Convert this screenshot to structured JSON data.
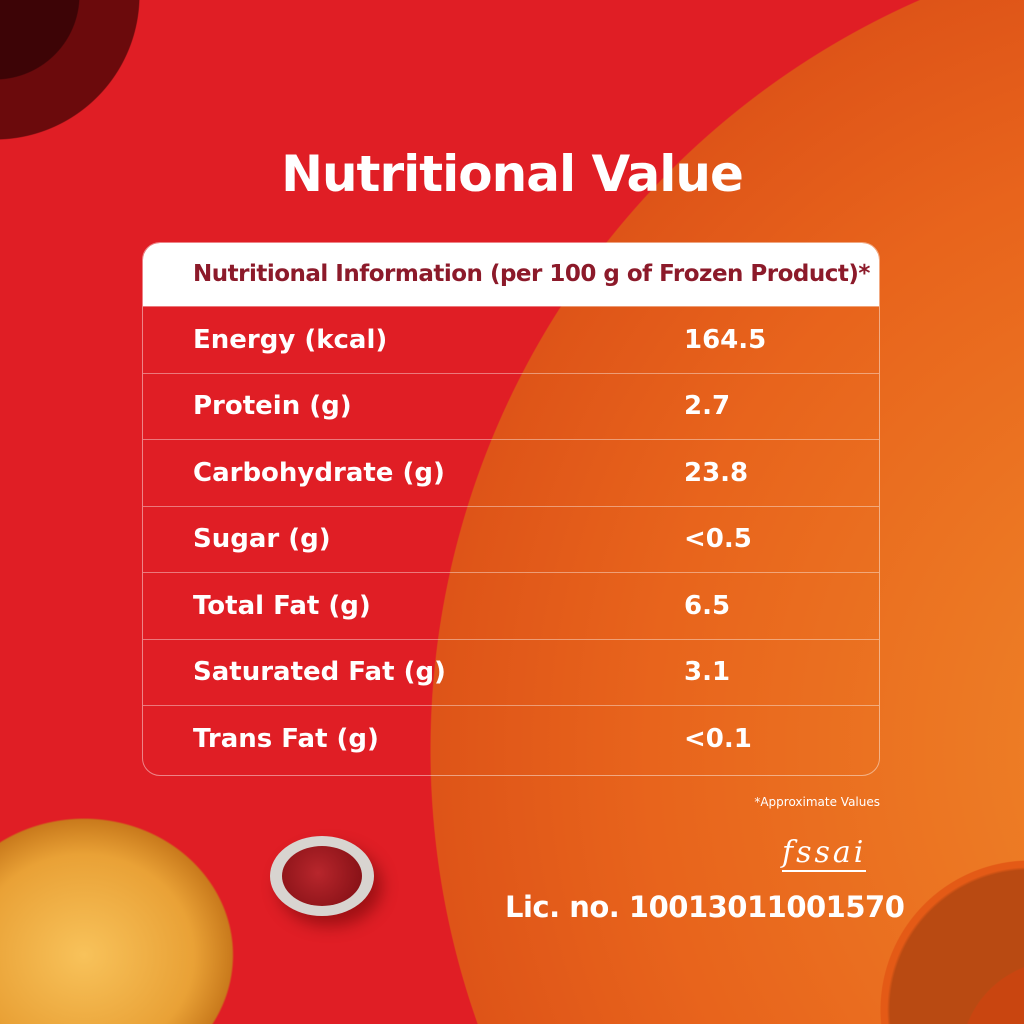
{
  "title": "Nutritional Value",
  "table": {
    "header": "Nutritional Information (per 100 g of Frozen Product)*",
    "rows": [
      {
        "label": "Energy (kcal)",
        "value": "164.5"
      },
      {
        "label": "Protein (g)",
        "value": "2.7"
      },
      {
        "label": "Carbohydrate (g)",
        "value": "23.8"
      },
      {
        "label": "Sugar (g)",
        "value": "<0.5"
      },
      {
        "label": "Total Fat (g)",
        "value": "6.5"
      },
      {
        "label": "Saturated Fat (g)",
        "value": "3.1"
      },
      {
        "label": "Trans Fat (g)",
        "value": "<0.1"
      }
    ]
  },
  "note": "*Approximate Values",
  "fssai_logo": "fssai",
  "license": "Lic. no. 10013011001570",
  "colors": {
    "red": "#e01e25",
    "orange": "#e8641c",
    "header_text": "#8c1a2a"
  }
}
